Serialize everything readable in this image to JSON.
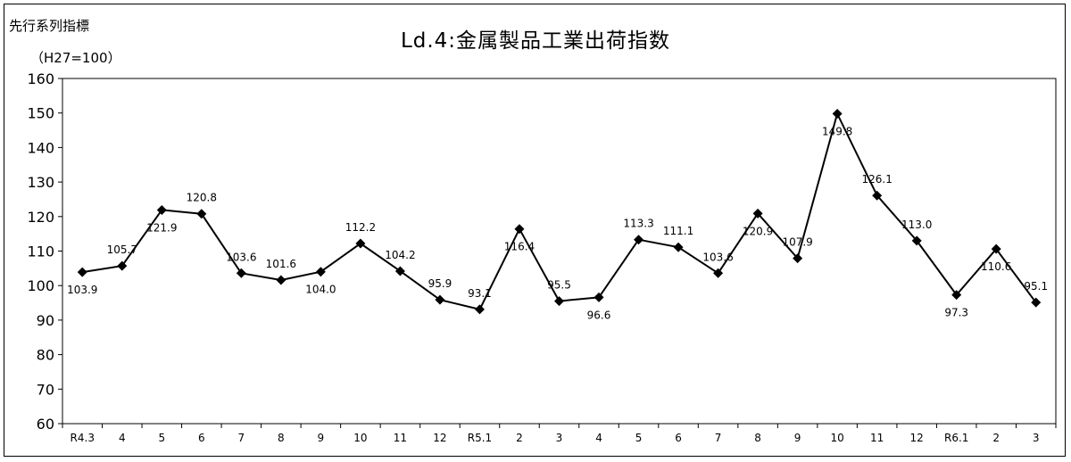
{
  "header": {
    "category": "先行系列指標",
    "base_note": "（H27=100）",
    "title": "Ld.4:金属製品工業出荷指数"
  },
  "chart_data": {
    "type": "line",
    "title": "Ld.4:金属製品工業出荷指数",
    "xlabel": "",
    "ylabel": "",
    "categories": [
      "R4.3",
      "4",
      "5",
      "6",
      "7",
      "8",
      "9",
      "10",
      "11",
      "12",
      "R5.1",
      "2",
      "3",
      "4",
      "5",
      "6",
      "7",
      "8",
      "9",
      "10",
      "11",
      "12",
      "R6.1",
      "2",
      "3"
    ],
    "series": [
      {
        "values": [
          103.9,
          105.7,
          121.9,
          120.8,
          103.6,
          101.6,
          104.0,
          112.2,
          104.2,
          95.9,
          93.1,
          116.4,
          95.5,
          96.6,
          113.3,
          111.1,
          103.6,
          120.9,
          107.9,
          149.8,
          126.1,
          113.0,
          97.3,
          110.6,
          95.1
        ]
      }
    ],
    "data_labels": [
      "103.9",
      "105.7",
      "121.9",
      "120.8",
      "103.6",
      "101.6",
      "104.0",
      "112.2",
      "104.2",
      "95.9",
      "93.1",
      "116.4",
      "95.5",
      "96.6",
      "113.3",
      "111.1",
      "103.6",
      "120.9",
      "107.9",
      "149.8",
      "126.1",
      "113.0",
      "97.3",
      "110.6",
      "95.1"
    ],
    "ylim": [
      60,
      160
    ],
    "yticks": [
      "60",
      "70",
      "80",
      "90",
      "100",
      "110",
      "120",
      "130",
      "140",
      "150",
      "160"
    ],
    "grid": false,
    "legend": "none",
    "colors": {
      "line": "#000000",
      "marker": "#000000"
    }
  }
}
